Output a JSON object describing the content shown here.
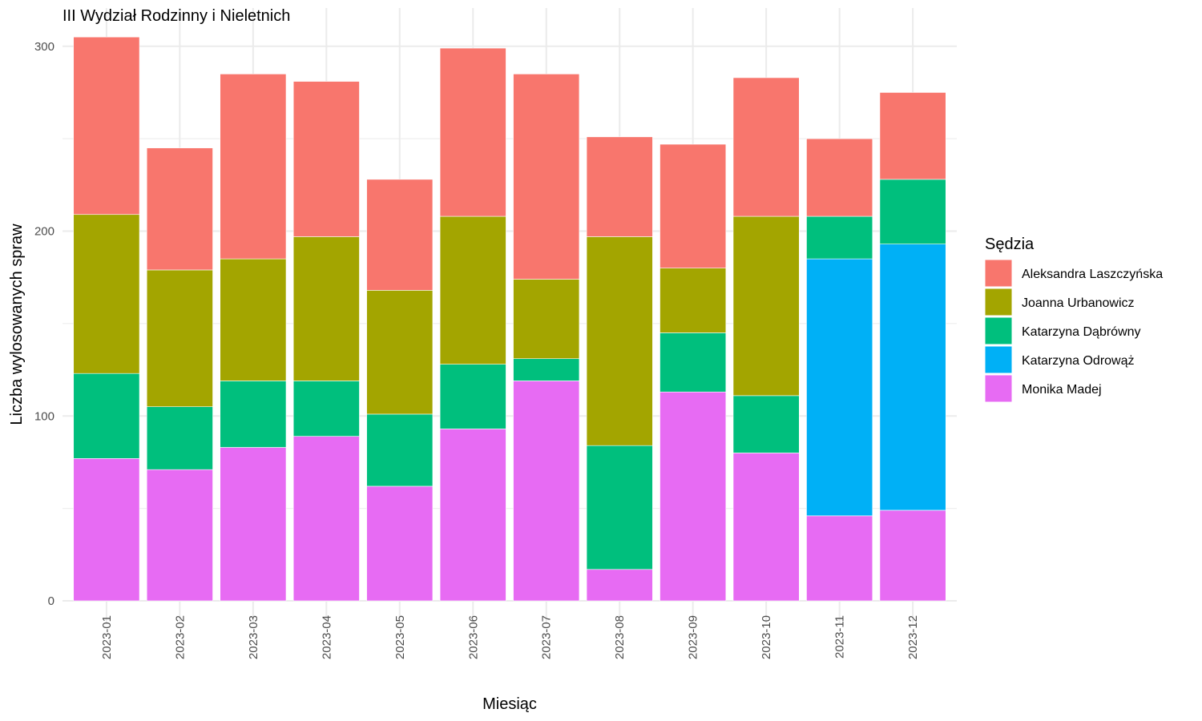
{
  "chart_data": {
    "type": "bar",
    "stacked": true,
    "title": "III Wydział Rodzinny i Nieletnich",
    "xlabel": "Miesiąc",
    "ylabel": "Liczba wylosowanych spraw",
    "ylim": [
      0,
      310
    ],
    "yticks": [
      0,
      100,
      200,
      300
    ],
    "grid": true,
    "legend_position": "right",
    "legend_title": "Sędzia",
    "categories": [
      "2023-01",
      "2023-02",
      "2023-03",
      "2023-04",
      "2023-05",
      "2023-06",
      "2023-07",
      "2023-08",
      "2023-09",
      "2023-10",
      "2023-11",
      "2023-12"
    ],
    "series": [
      {
        "name": "Monika Madej",
        "color": "#E76BF3",
        "values": [
          77,
          71,
          83,
          89,
          62,
          93,
          119,
          17,
          113,
          80,
          46,
          49
        ]
      },
      {
        "name": "Katarzyna Odrowąż",
        "color": "#00B0F6",
        "values": [
          0,
          0,
          0,
          0,
          0,
          0,
          0,
          0,
          0,
          0,
          139,
          144
        ]
      },
      {
        "name": "Katarzyna Dąbrówny",
        "color": "#00BF7D",
        "values": [
          46,
          34,
          36,
          30,
          39,
          35,
          12,
          67,
          32,
          31,
          23,
          35
        ]
      },
      {
        "name": "Joanna Urbanowicz",
        "color": "#A3A500",
        "values": [
          86,
          74,
          66,
          78,
          67,
          80,
          43,
          113,
          35,
          97,
          0,
          0
        ]
      },
      {
        "name": "Aleksandra Laszczyńska",
        "color": "#F8766D",
        "values": [
          96,
          66,
          100,
          84,
          60,
          91,
          111,
          54,
          67,
          75,
          42,
          47
        ]
      }
    ],
    "legend_order": [
      "Aleksandra Laszczyńska",
      "Joanna Urbanowicz",
      "Katarzyna Dąbrówny",
      "Katarzyna Odrowąż",
      "Monika Madej"
    ]
  }
}
